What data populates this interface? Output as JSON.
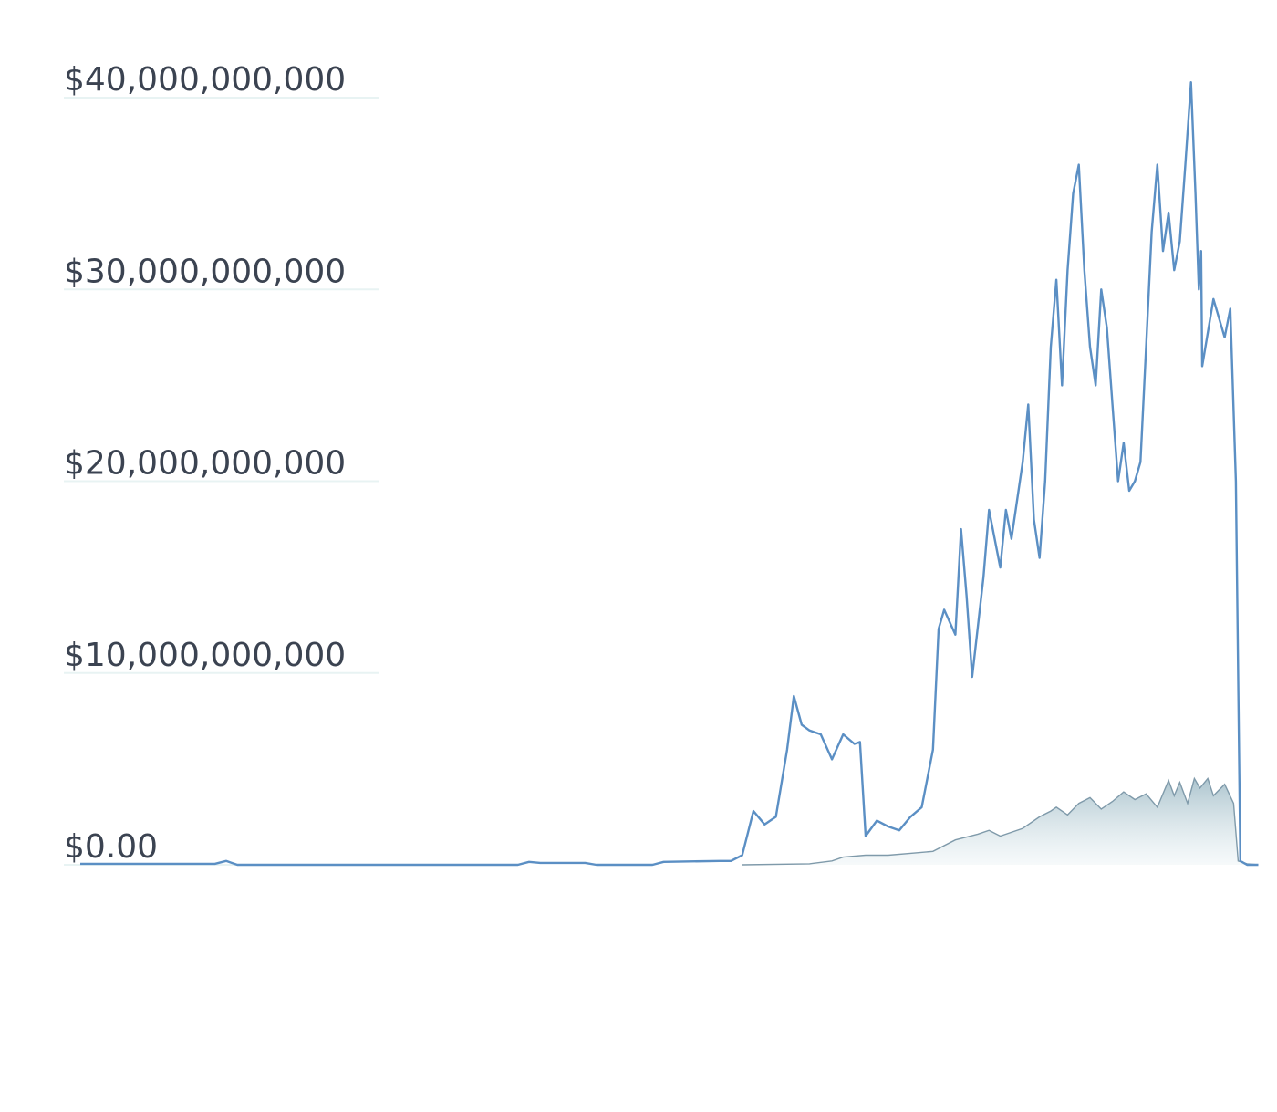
{
  "chart_data": {
    "type": "area",
    "title": "",
    "xlabel": "",
    "ylabel": "",
    "ylim": [
      0,
      40000000000
    ],
    "grid": true,
    "y_ticks": [
      {
        "value": 40000000000,
        "label": "$40,000,000,000"
      },
      {
        "value": 30000000000,
        "label": "$30,000,000,000"
      },
      {
        "value": 20000000000,
        "label": "$20,000,000,000"
      },
      {
        "value": 10000000000,
        "label": "$10,000,000,000"
      },
      {
        "value": 0,
        "label": "$0.00"
      }
    ],
    "x_range": [
      0,
      100
    ],
    "series": [
      {
        "color": "#5b8fc4",
        "style": "line",
        "points": [
          [
            0,
            50000000.0
          ],
          [
            12,
            50000000.0
          ],
          [
            13,
            200000000.0
          ],
          [
            14,
            0.0
          ],
          [
            28,
            0.0
          ],
          [
            39,
            0.0
          ],
          [
            40,
            150000000.0
          ],
          [
            41,
            100000000.0
          ],
          [
            45,
            100000000.0
          ],
          [
            46,
            0.0
          ],
          [
            51,
            0.0
          ],
          [
            52,
            150000000.0
          ],
          [
            57,
            200000000.0
          ],
          [
            58,
            200000000.0
          ],
          [
            59,
            500000000.0
          ],
          [
            60,
            2800000000.0
          ],
          [
            61,
            2100000000.0
          ],
          [
            62,
            2500000000.0
          ],
          [
            63,
            6000000000.0
          ],
          [
            63.6,
            8800000000.0
          ],
          [
            64.3,
            7300000000.0
          ],
          [
            65,
            7000000000.0
          ],
          [
            66,
            6800000000.0
          ],
          [
            67,
            5500000000.0
          ],
          [
            68,
            6800000000.0
          ],
          [
            69,
            6300000000.0
          ],
          [
            69.5,
            6400000000.0
          ],
          [
            70,
            1500000000.0
          ],
          [
            71,
            2300000000.0
          ],
          [
            72,
            2000000000.0
          ],
          [
            73,
            1800000000.0
          ],
          [
            74,
            2500000000.0
          ],
          [
            75,
            3000000000.0
          ],
          [
            76,
            6000000000.0
          ],
          [
            76.5,
            12300000000.0
          ],
          [
            77,
            13300000000.0
          ],
          [
            78,
            12000000000.0
          ],
          [
            78.5,
            17500000000.0
          ],
          [
            79,
            14000000000.0
          ],
          [
            79.5,
            9800000000.0
          ],
          [
            80.5,
            15000000000.0
          ],
          [
            81,
            18500000000.0
          ],
          [
            82,
            15500000000.0
          ],
          [
            82.5,
            18500000000.0
          ],
          [
            83,
            17000000000.0
          ],
          [
            84,
            21000000000.0
          ],
          [
            84.5,
            24000000000.0
          ],
          [
            85,
            18000000000.0
          ],
          [
            85.5,
            16000000000.0
          ],
          [
            86,
            20000000000.0
          ],
          [
            86.5,
            27000000000.0
          ],
          [
            87,
            30500000000.0
          ],
          [
            87.5,
            25000000000.0
          ],
          [
            88,
            31000000000.0
          ],
          [
            88.5,
            35000000000.0
          ],
          [
            89,
            36500000000.0
          ],
          [
            89.5,
            31000000000.0
          ],
          [
            90,
            27000000000.0
          ],
          [
            90.5,
            25000000000.0
          ],
          [
            91,
            30000000000.0
          ],
          [
            91.5,
            28000000000.0
          ],
          [
            92,
            24000000000.0
          ],
          [
            92.5,
            20000000000.0
          ],
          [
            93,
            22000000000.0
          ],
          [
            93.5,
            19500000000.0
          ],
          [
            94,
            20000000000.0
          ],
          [
            94.5,
            21000000000.0
          ],
          [
            95,
            27000000000.0
          ],
          [
            95.5,
            33000000000.0
          ],
          [
            96,
            36500000000.0
          ],
          [
            96.5,
            32000000000.0
          ],
          [
            97,
            34000000000.0
          ],
          [
            97.5,
            31000000000.0
          ],
          [
            98,
            32500000000.0
          ],
          [
            98.5,
            36500000000.0
          ],
          [
            99,
            40800000000.0
          ],
          [
            99.4,
            35000000000.0
          ],
          [
            99.7,
            30000000000.0
          ],
          [
            99.9,
            32000000000.0
          ],
          [
            100,
            26000000000.0
          ],
          [
            101,
            29500000000.0
          ],
          [
            102,
            27500000000.0
          ],
          [
            102.5,
            29000000000.0
          ],
          [
            103,
            20000000000.0
          ],
          [
            103.4,
            200000000.0
          ],
          [
            104,
            0.0
          ],
          [
            105,
            0.0
          ]
        ]
      },
      {
        "color": "#7f9aaa",
        "style": "area",
        "fill": "#cfdde3",
        "points": [
          [
            59,
            0.0
          ],
          [
            65,
            50000000.0
          ],
          [
            67,
            200000000.0
          ],
          [
            68,
            400000000.0
          ],
          [
            70,
            500000000.0
          ],
          [
            72,
            500000000.0
          ],
          [
            74,
            600000000.0
          ],
          [
            76,
            700000000.0
          ],
          [
            78,
            1300000000.0
          ],
          [
            80,
            1600000000.0
          ],
          [
            81,
            1800000000.0
          ],
          [
            82,
            1500000000.0
          ],
          [
            84,
            1900000000.0
          ],
          [
            85.5,
            2500000000.0
          ],
          [
            86.5,
            2800000000.0
          ],
          [
            87,
            3000000000.0
          ],
          [
            88,
            2600000000.0
          ],
          [
            89,
            3200000000.0
          ],
          [
            90,
            3500000000.0
          ],
          [
            91,
            2900000000.0
          ],
          [
            92,
            3300000000.0
          ],
          [
            93,
            3800000000.0
          ],
          [
            94,
            3400000000.0
          ],
          [
            95,
            3700000000.0
          ],
          [
            96,
            3000000000.0
          ],
          [
            97,
            4400000000.0
          ],
          [
            97.5,
            3600000000.0
          ],
          [
            98,
            4300000000.0
          ],
          [
            98.7,
            3200000000.0
          ],
          [
            99.3,
            4500000000.0
          ],
          [
            99.8,
            4000000000.0
          ],
          [
            100.5,
            4500000000.0
          ],
          [
            101,
            3600000000.0
          ],
          [
            102,
            4200000000.0
          ],
          [
            102.8,
            3200000000.0
          ],
          [
            103.2,
            200000000.0
          ],
          [
            104,
            50000000.0
          ],
          [
            105,
            0.0
          ]
        ]
      }
    ]
  }
}
